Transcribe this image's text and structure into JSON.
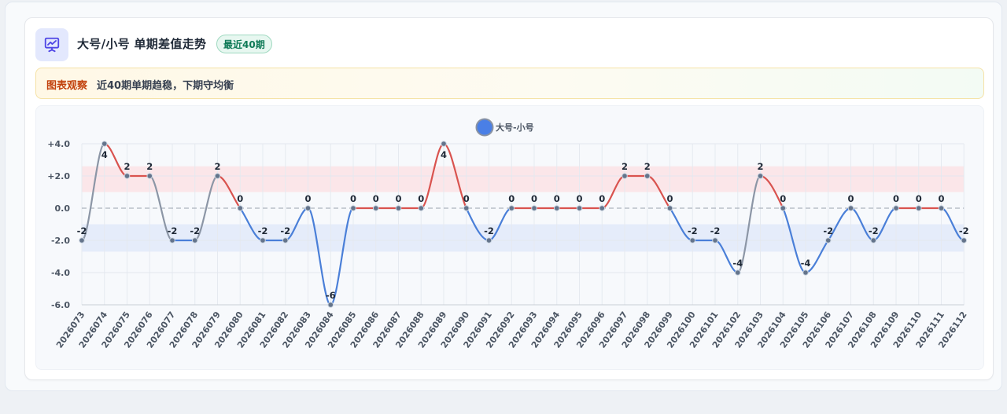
{
  "header": {
    "title": "大号/小号 单期差值走势",
    "badge": "最近40期",
    "icon": "chart-trend-icon"
  },
  "notice": {
    "label": "图表观察",
    "text": "近40期单期趋稳，下期守均衡"
  },
  "colors": {
    "positive": "#d9534f",
    "negative": "#4a7fd8",
    "transition": "#8c96a6",
    "legend": "#4a7fe6",
    "band_positive": "#fbe3e5",
    "band_negative": "#e2eaf9"
  },
  "chart_data": {
    "type": "line",
    "legend": [
      "大号-小号"
    ],
    "y_ticks": [
      "+4.0",
      "+2.0",
      "0.0",
      "-2.0",
      "-4.0",
      "-6.0"
    ],
    "ylim": [
      -6,
      4
    ],
    "grid": true,
    "legend_position": "top-center",
    "bands": [
      {
        "from": 1,
        "to": 2.6
      },
      {
        "from": -2.7,
        "to": -1
      }
    ],
    "categories": [
      "2026073",
      "2026074",
      "2026075",
      "2026076",
      "2026077",
      "2026078",
      "2026079",
      "2026080",
      "2026081",
      "2026082",
      "2026083",
      "2026084",
      "2026085",
      "2026086",
      "2026087",
      "2026088",
      "2026089",
      "2026090",
      "2026091",
      "2026092",
      "2026093",
      "2026094",
      "2026095",
      "2026096",
      "2026097",
      "2026098",
      "2026099",
      "2026100",
      "2026101",
      "2026102",
      "2026103",
      "2026104",
      "2026105",
      "2026106",
      "2026107",
      "2026108",
      "2026109",
      "2026110",
      "2026111",
      "2026112"
    ],
    "series": [
      {
        "name": "大号-小号",
        "values": [
          -2,
          4,
          2,
          2,
          -2,
          -2,
          2,
          0,
          -2,
          -2,
          0,
          -6,
          0,
          0,
          0,
          0,
          4,
          0,
          -2,
          0,
          0,
          0,
          0,
          0,
          2,
          2,
          0,
          -2,
          -2,
          -4,
          2,
          0,
          -4,
          -2,
          0,
          -2,
          0,
          0,
          0,
          -2
        ],
        "labels": [
          "-2",
          "4",
          "2",
          "2",
          "-2",
          "-2",
          "2",
          "0",
          "-2",
          "-2",
          "0",
          "-6",
          "0",
          "0",
          "0",
          "0",
          "4",
          "0",
          "-2",
          "0",
          "0",
          "0",
          "0",
          "0",
          "2",
          "2",
          "0",
          "-2",
          "-2",
          "-4",
          "2",
          "0",
          "-4",
          "-2",
          "0",
          "-2",
          "0",
          "0",
          "0",
          "-2"
        ]
      }
    ]
  }
}
